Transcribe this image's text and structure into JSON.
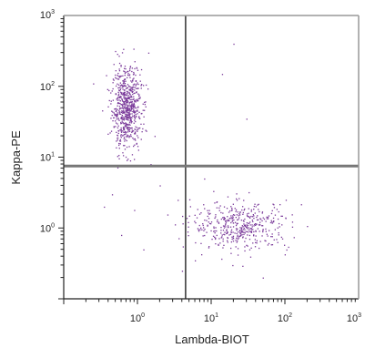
{
  "chart_data": {
    "type": "scatter",
    "title": "",
    "xlabel": "Lambda-BIOT",
    "ylabel": "Kappa-PE",
    "x_scale": "log",
    "y_scale": "log",
    "xlim": [
      0.1,
      1000
    ],
    "ylim": [
      0.1,
      1000
    ],
    "x_ticks": [
      {
        "value": 1,
        "base": "10",
        "exp": "0"
      },
      {
        "value": 10,
        "base": "10",
        "exp": "1"
      },
      {
        "value": 100,
        "base": "10",
        "exp": "2"
      },
      {
        "value": 1000,
        "base": "10",
        "exp": "3"
      }
    ],
    "y_ticks": [
      {
        "value": 1,
        "base": "10",
        "exp": "0"
      },
      {
        "value": 10,
        "base": "10",
        "exp": "1"
      },
      {
        "value": 100,
        "base": "10",
        "exp": "2"
      },
      {
        "value": 1000,
        "base": "10",
        "exp": "3"
      }
    ],
    "quadrant_gates": {
      "x": 4.5,
      "y": 7.5
    },
    "point_color": "#7a3a9a",
    "gate_color": "#111111",
    "grid": false,
    "series": [
      {
        "clusters": [
          {
            "center": [
              0.7,
              50
            ],
            "spread_log": [
              0.1,
              0.28
            ],
            "count": 700
          },
          {
            "center": [
              25,
              1.1
            ],
            "spread_log": [
              0.33,
              0.17
            ],
            "count": 450
          }
        ],
        "points": [
          [
            2.0,
            4.0
          ],
          [
            0.45,
            3.0
          ],
          [
            1.2,
            0.5
          ],
          [
            0.35,
            2.0
          ],
          [
            4.0,
            0.25
          ],
          [
            5.0,
            1.5
          ],
          [
            6.0,
            0.35
          ],
          [
            14,
            150
          ],
          [
            20,
            400
          ],
          [
            30,
            35
          ],
          [
            8,
            5
          ],
          [
            0.6,
            0.8
          ],
          [
            0.9,
            1.8
          ],
          [
            1.5,
            8
          ],
          [
            3.5,
            2.5
          ],
          [
            50,
            0.2
          ],
          [
            1.7,
            20
          ],
          [
            0.55,
            15
          ],
          [
            0.25,
            110
          ],
          [
            1.4,
            300
          ]
        ]
      }
    ]
  }
}
